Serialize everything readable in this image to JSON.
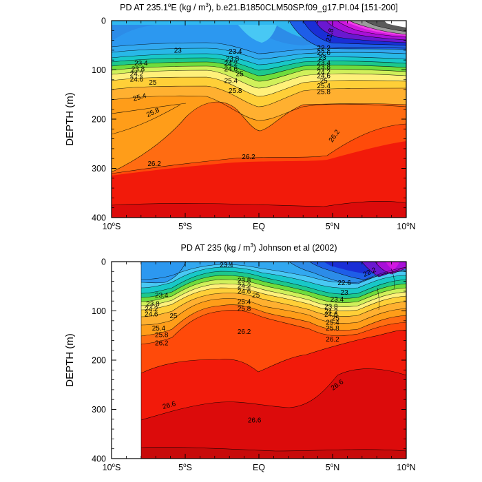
{
  "chart_data": [
    {
      "type": "contour",
      "title": "PD AT 235.1°E (kg / m³), b.e21.B1850CLM50SP.f09_g17.PI.04 [151-200]",
      "title_parts": {
        "a": "PD AT 235.1",
        "b": "E (kg / m",
        "c": "), b.e21.B1850CLM50SP.f09_g17.PI.04 [151-200]"
      },
      "ylabel": "DEPTH (m)",
      "ylim": [
        0,
        400
      ],
      "xlim": [
        -10,
        10
      ],
      "x_ticks": [
        {
          "v": -10,
          "n": "10",
          "s": "o",
          "h": "S"
        },
        {
          "v": -5,
          "n": "5",
          "s": "o",
          "h": "S"
        },
        {
          "v": 0,
          "n": "EQ",
          "s": "",
          "h": ""
        },
        {
          "v": 5,
          "n": "5",
          "s": "o",
          "h": "N"
        },
        {
          "v": 10,
          "n": "10",
          "s": "o",
          "h": "N"
        }
      ],
      "y_ticks": [
        "0",
        "100",
        "200",
        "300",
        "400"
      ],
      "contour_labels": [
        {
          "t": "23",
          "x": -5.5,
          "y": 60
        },
        {
          "t": "23.4",
          "x": -8.0,
          "y": 86
        },
        {
          "t": "23.8",
          "x": -8.2,
          "y": 98
        },
        {
          "t": "24.2",
          "x": -8.3,
          "y": 108
        },
        {
          "t": "24.6",
          "x": -8.3,
          "y": 119
        },
        {
          "t": "25",
          "x": -7.2,
          "y": 125
        },
        {
          "t": "25.4",
          "x": -8.1,
          "y": 155
        },
        {
          "t": "25.8",
          "x": -7.2,
          "y": 186
        },
        {
          "t": "26.2",
          "x": -7.1,
          "y": 290
        },
        {
          "t": "23.4",
          "x": -1.6,
          "y": 62
        },
        {
          "t": "23.8",
          "x": -1.8,
          "y": 77
        },
        {
          "t": "24.2",
          "x": -1.9,
          "y": 87
        },
        {
          "t": "24.6",
          "x": -1.9,
          "y": 98
        },
        {
          "t": "25",
          "x": -1.3,
          "y": 108
        },
        {
          "t": "25.4",
          "x": -1.9,
          "y": 122
        },
        {
          "t": "25.8",
          "x": -1.6,
          "y": 142
        },
        {
          "t": "26.2",
          "x": -0.7,
          "y": 276
        },
        {
          "t": "21.8",
          "x": 4.8,
          "y": 29
        },
        {
          "t": "22.2",
          "x": 4.4,
          "y": 55
        },
        {
          "t": "22.6",
          "x": 4.4,
          "y": 65
        },
        {
          "t": "23",
          "x": 4.3,
          "y": 75
        },
        {
          "t": "23.4",
          "x": 4.4,
          "y": 85
        },
        {
          "t": "23.8",
          "x": 4.4,
          "y": 94
        },
        {
          "t": "24.2",
          "x": 4.4,
          "y": 104
        },
        {
          "t": "24.6",
          "x": 4.4,
          "y": 112
        },
        {
          "t": "25",
          "x": 4.4,
          "y": 122
        },
        {
          "t": "25.4",
          "x": 4.4,
          "y": 132
        },
        {
          "t": "25.8",
          "x": 4.4,
          "y": 144
        },
        {
          "t": "26.2",
          "x": 5.1,
          "y": 234
        }
      ],
      "contour_label_rotations": [
        0,
        0,
        0,
        0,
        0,
        0,
        -15,
        -25,
        0,
        0,
        0,
        0,
        0,
        0,
        0,
        0,
        0,
        -75,
        0,
        0,
        0,
        0,
        0,
        0,
        0,
        0,
        0,
        0,
        -55
      ]
    },
    {
      "type": "contour",
      "title": "PD AT 235 (kg / m³) Johnson et al (2002)",
      "title_parts": {
        "a": "PD AT 235 (kg / m",
        "b": ") Johnson et al (2002)"
      },
      "ylabel": "DEPTH (m)",
      "ylim": [
        0,
        400
      ],
      "xlim": [
        -10,
        10
      ],
      "data_start_x": -8.0,
      "x_ticks": [
        {
          "v": -10,
          "n": "10",
          "s": "o",
          "h": "S"
        },
        {
          "v": -5,
          "n": "5",
          "s": "o",
          "h": "S"
        },
        {
          "v": 0,
          "n": "EQ",
          "s": "",
          "h": ""
        },
        {
          "v": 5,
          "n": "5",
          "s": "o",
          "h": "N"
        },
        {
          "v": 10,
          "n": "10",
          "s": "o",
          "h": "N"
        }
      ],
      "y_ticks": [
        "0",
        "100",
        "200",
        "300",
        "400"
      ],
      "contour_labels": [
        {
          "t": "23.4",
          "x": -2.2,
          "y": 6
        },
        {
          "t": "23.4",
          "x": -6.6,
          "y": 68
        },
        {
          "t": "23.8",
          "x": -7.2,
          "y": 85
        },
        {
          "t": "24.2",
          "x": -7.3,
          "y": 96
        },
        {
          "t": "24.6",
          "x": -7.3,
          "y": 106
        },
        {
          "t": "25",
          "x": -5.8,
          "y": 110
        },
        {
          "t": "25.4",
          "x": -6.8,
          "y": 135
        },
        {
          "t": "25.8",
          "x": -6.6,
          "y": 148
        },
        {
          "t": "26.2",
          "x": -6.6,
          "y": 165
        },
        {
          "t": "23.8",
          "x": -1.0,
          "y": 38
        },
        {
          "t": "24.2",
          "x": -1.0,
          "y": 49
        },
        {
          "t": "24.6",
          "x": -1.0,
          "y": 60
        },
        {
          "t": "25",
          "x": -0.2,
          "y": 68
        },
        {
          "t": "25.4",
          "x": -1.0,
          "y": 81
        },
        {
          "t": "25.8",
          "x": -1.0,
          "y": 95
        },
        {
          "t": "26.2",
          "x": -1.0,
          "y": 142
        },
        {
          "t": "26.6",
          "x": -6.1,
          "y": 291
        },
        {
          "t": "26.6",
          "x": -0.3,
          "y": 322
        },
        {
          "t": "22.2",
          "x": 7.5,
          "y": 21
        },
        {
          "t": "22.6",
          "x": 5.8,
          "y": 43
        },
        {
          "t": "23",
          "x": 5.8,
          "y": 62
        },
        {
          "t": "23.4",
          "x": 5.3,
          "y": 76
        },
        {
          "t": "23.8",
          "x": 4.9,
          "y": 91
        },
        {
          "t": "24.2",
          "x": 4.9,
          "y": 101
        },
        {
          "t": "24.6",
          "x": 4.9,
          "y": 107
        },
        {
          "t": "25",
          "x": 5.2,
          "y": 115
        },
        {
          "t": "25.4",
          "x": 5.0,
          "y": 123
        },
        {
          "t": "25.8",
          "x": 5.0,
          "y": 135
        },
        {
          "t": "26.2",
          "x": 5.0,
          "y": 157
        },
        {
          "t": "26.6",
          "x": 5.3,
          "y": 250
        }
      ],
      "contour_label_rotations": [
        0,
        0,
        0,
        0,
        0,
        0,
        0,
        0,
        0,
        0,
        0,
        0,
        0,
        0,
        0,
        0,
        -15,
        0,
        -25,
        0,
        0,
        0,
        0,
        0,
        0,
        0,
        0,
        0,
        0,
        -35
      ]
    }
  ]
}
